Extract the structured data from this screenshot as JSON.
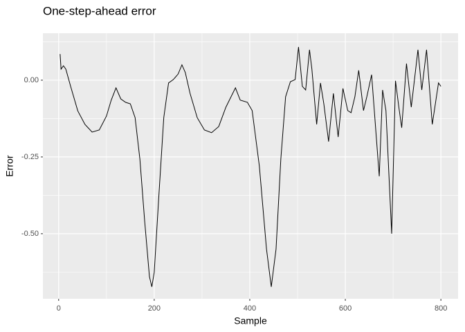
{
  "chart_data": {
    "type": "line",
    "title": "One-step-ahead error",
    "x_label": "Sample",
    "y_label": "Error",
    "x": [
      3,
      5,
      10,
      15,
      25,
      40,
      55,
      70,
      85,
      100,
      110,
      120,
      130,
      140,
      150,
      160,
      170,
      180,
      190,
      195,
      200,
      210,
      220,
      230,
      240,
      250,
      258,
      265,
      275,
      290,
      305,
      320,
      335,
      350,
      370,
      380,
      395,
      405,
      420,
      435,
      445,
      455,
      465,
      475,
      485,
      495,
      502,
      510,
      517,
      525,
      530,
      540,
      548,
      555,
      565,
      575,
      585,
      595,
      605,
      612,
      620,
      628,
      638,
      645,
      655,
      665,
      671,
      678,
      685,
      697,
      705,
      712,
      718,
      728,
      738,
      752,
      760,
      770,
      782,
      795,
      800
    ],
    "series": [
      {
        "name": "Error",
        "color": "#000000",
        "values": [
          0.085,
          0.036,
          0.047,
          0.036,
          -0.02,
          -0.1,
          -0.144,
          -0.169,
          -0.162,
          -0.117,
          -0.065,
          -0.025,
          -0.061,
          -0.072,
          -0.077,
          -0.122,
          -0.257,
          -0.459,
          -0.64,
          -0.673,
          -0.626,
          -0.369,
          -0.122,
          -0.009,
          0.002,
          0.02,
          0.05,
          0.025,
          -0.043,
          -0.122,
          -0.162,
          -0.171,
          -0.151,
          -0.088,
          -0.025,
          -0.065,
          -0.072,
          -0.099,
          -0.279,
          -0.55,
          -0.673,
          -0.55,
          -0.257,
          -0.054,
          -0.005,
          0.002,
          0.108,
          -0.02,
          -0.032,
          0.099,
          0.036,
          -0.144,
          -0.009,
          -0.077,
          -0.2,
          -0.043,
          -0.185,
          -0.027,
          -0.099,
          -0.106,
          -0.054,
          0.032,
          -0.099,
          -0.054,
          0.018,
          -0.189,
          -0.313,
          -0.032,
          -0.099,
          -0.5,
          -0.002,
          -0.088,
          -0.155,
          0.054,
          -0.088,
          0.099,
          -0.032,
          0.099,
          -0.144,
          -0.009,
          -0.02
        ]
      }
    ],
    "xlim": [
      -33,
      836
    ],
    "ylim": [
      -0.712,
      0.153
    ],
    "xticks": [
      0,
      200,
      400,
      600,
      800
    ],
    "yticks": [
      {
        "value": -0.5,
        "label": "-0.50"
      },
      {
        "value": -0.25,
        "label": "-0.25"
      },
      {
        "value": 0,
        "label": "0.00"
      }
    ],
    "minor_xticks": [
      100,
      300,
      500,
      700
    ],
    "minor_yticks": [
      -0.625,
      -0.375,
      -0.125,
      0.125
    ],
    "grid": true,
    "background": "#ebebeb"
  }
}
